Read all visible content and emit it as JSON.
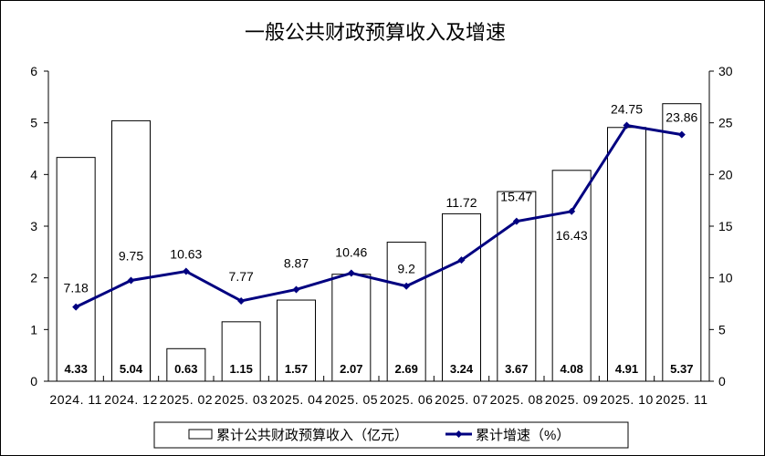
{
  "chart_data": {
    "type": "bar+line",
    "title": "一般公共财政预算收入及增速",
    "categories": [
      "2024.11",
      "2024.12",
      "2025.02",
      "2025.03",
      "2025.04",
      "2025.05",
      "2025.06",
      "2025.07",
      "2025.08",
      "2025.09",
      "2025.10",
      "2025.11"
    ],
    "series": [
      {
        "name": "累计公共财政预算收入（亿元）",
        "type": "bar",
        "axis": "left",
        "values": [
          4.33,
          5.04,
          0.63,
          1.15,
          1.57,
          2.07,
          2.69,
          3.24,
          3.67,
          4.08,
          4.91,
          5.37
        ],
        "labels": [
          "4.33",
          "5.04",
          "0.63",
          "1.15",
          "1.57",
          "2.07",
          "2.69",
          "3.24",
          "3.67",
          "4.08",
          "4.91",
          "5.37"
        ],
        "color": "#ffffff"
      },
      {
        "name": "累计增速（%）",
        "type": "line",
        "axis": "right",
        "values": [
          7.18,
          9.75,
          10.63,
          7.77,
          8.87,
          10.46,
          9.2,
          11.72,
          15.47,
          16.43,
          24.75,
          23.86
        ],
        "labels": [
          "7.18",
          "9.75",
          "10.63",
          "7.77",
          "8.87",
          "10.46",
          "9.2",
          "11.72",
          "15.47",
          "16.43",
          "24.75",
          "23.86"
        ],
        "color": "#000080"
      }
    ],
    "ylim_left": [
      0,
      6
    ],
    "yticks_left": [
      "0",
      "1",
      "2",
      "3",
      "4",
      "5",
      "6"
    ],
    "ylim_right": [
      0,
      30
    ],
    "yticks_right": [
      "0",
      "5",
      "10",
      "15",
      "20",
      "25",
      "30"
    ],
    "grid": false,
    "legend": "bottom"
  }
}
